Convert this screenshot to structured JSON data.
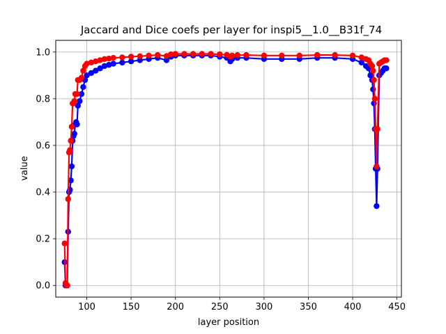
{
  "chart_data": {
    "type": "line",
    "title": "Jaccard and Dice coefs per layer for inspi5__1.0__B31f_74",
    "xlabel": "layer position",
    "ylabel": "value",
    "xlim": [
      65,
      455
    ],
    "ylim": [
      -0.05,
      1.05
    ],
    "xticks": [
      100,
      150,
      200,
      250,
      300,
      350,
      400,
      450
    ],
    "yticks": [
      0.0,
      0.2,
      0.4,
      0.6,
      0.8,
      1.0
    ],
    "xtick_labels": [
      "100",
      "150",
      "200",
      "250",
      "300",
      "350",
      "400",
      "450"
    ],
    "ytick_labels": [
      "0.0",
      "0.2",
      "0.4",
      "0.6",
      "0.8",
      "1.0"
    ],
    "grid": true,
    "marker": "circle",
    "series": [
      {
        "color": "#0000ff",
        "x": [
          75,
          76,
          77,
          78,
          79,
          80,
          81,
          82,
          83,
          84,
          85,
          86,
          87,
          88,
          89,
          90,
          92,
          94,
          96,
          98,
          100,
          105,
          110,
          115,
          120,
          125,
          130,
          140,
          150,
          160,
          170,
          180,
          190,
          195,
          200,
          210,
          220,
          230,
          240,
          250,
          258,
          262,
          264,
          270,
          280,
          300,
          320,
          340,
          360,
          380,
          400,
          410,
          415,
          418,
          420,
          422,
          423,
          424,
          425,
          426,
          427,
          428,
          430,
          432,
          434,
          436,
          438
        ],
        "y": [
          0.1,
          0.0,
          0.0,
          0.0,
          0.23,
          0.4,
          0.41,
          0.45,
          0.51,
          0.62,
          0.64,
          0.65,
          0.69,
          0.7,
          0.69,
          0.77,
          0.79,
          0.82,
          0.85,
          0.88,
          0.9,
          0.91,
          0.92,
          0.93,
          0.94,
          0.945,
          0.95,
          0.955,
          0.96,
          0.965,
          0.97,
          0.975,
          0.965,
          0.98,
          0.985,
          0.985,
          0.985,
          0.985,
          0.985,
          0.98,
          0.975,
          0.96,
          0.97,
          0.975,
          0.975,
          0.97,
          0.97,
          0.97,
          0.975,
          0.975,
          0.97,
          0.955,
          0.94,
          0.93,
          0.9,
          0.88,
          0.84,
          0.78,
          0.67,
          0.5,
          0.34,
          0.5,
          0.9,
          0.91,
          0.92,
          0.93,
          0.93
        ]
      },
      {
        "color": "#ff0000",
        "x": [
          75,
          76,
          77,
          78,
          79,
          80,
          81,
          82,
          83,
          84,
          85,
          86,
          87,
          88,
          89,
          90,
          92,
          94,
          96,
          98,
          100,
          105,
          110,
          115,
          120,
          125,
          130,
          140,
          150,
          160,
          170,
          180,
          190,
          195,
          200,
          210,
          220,
          230,
          240,
          250,
          258,
          262,
          264,
          270,
          280,
          300,
          320,
          340,
          360,
          380,
          400,
          410,
          415,
          418,
          420,
          422,
          423,
          424,
          425,
          426,
          427,
          428,
          430,
          432,
          434,
          436,
          438
        ],
        "y": [
          0.18,
          0.01,
          0.0,
          0.0,
          0.37,
          0.57,
          0.58,
          0.62,
          0.68,
          0.78,
          0.78,
          0.79,
          0.82,
          0.82,
          0.82,
          0.88,
          0.88,
          0.89,
          0.92,
          0.94,
          0.95,
          0.955,
          0.96,
          0.965,
          0.97,
          0.972,
          0.975,
          0.977,
          0.98,
          0.982,
          0.985,
          0.987,
          0.983,
          0.99,
          0.992,
          0.992,
          0.992,
          0.992,
          0.992,
          0.99,
          0.988,
          0.98,
          0.985,
          0.987,
          0.987,
          0.985,
          0.985,
          0.985,
          0.987,
          0.987,
          0.985,
          0.977,
          0.97,
          0.965,
          0.95,
          0.94,
          0.92,
          0.88,
          0.8,
          0.67,
          0.51,
          0.67,
          0.95,
          0.955,
          0.96,
          0.965,
          0.965
        ]
      }
    ]
  }
}
